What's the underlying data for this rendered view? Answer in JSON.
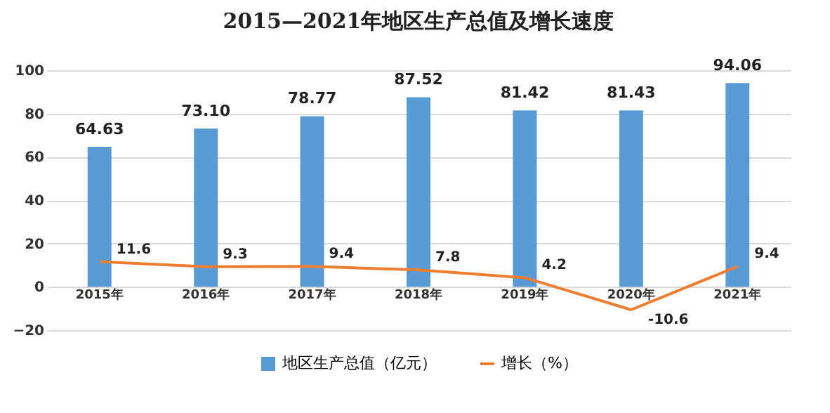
{
  "chart_data": {
    "type": "bar",
    "title": "2015—2021年地区生产总值及增长速度",
    "categories": [
      "2015年",
      "2016年",
      "2017年",
      "2018年",
      "2019年",
      "2020年",
      "2021年"
    ],
    "series": [
      {
        "name": "地区生产总值（亿元）",
        "color": "#5b9bd5",
        "values": [
          64.63,
          73.1,
          78.77,
          87.52,
          81.42,
          81.43,
          94.06
        ],
        "value_labels": [
          "64.63",
          "73.10",
          "78.77",
          "87.52",
          "81.42",
          "81.43",
          "94.06"
        ]
      },
      {
        "name": "增长（%）",
        "type": "line",
        "color": "#ed7d31",
        "values": [
          11.6,
          9.3,
          9.4,
          7.8,
          4.2,
          -10.6,
          9.4
        ],
        "value_labels": [
          "11.6",
          "9.3",
          "9.4",
          "7.8",
          "4.2",
          "-10.6",
          "9.4"
        ]
      }
    ],
    "ylim": [
      -20,
      100
    ],
    "yticks": [
      -20,
      0,
      20,
      40,
      60,
      80,
      100
    ],
    "grid": "y",
    "legend": "bottom"
  }
}
